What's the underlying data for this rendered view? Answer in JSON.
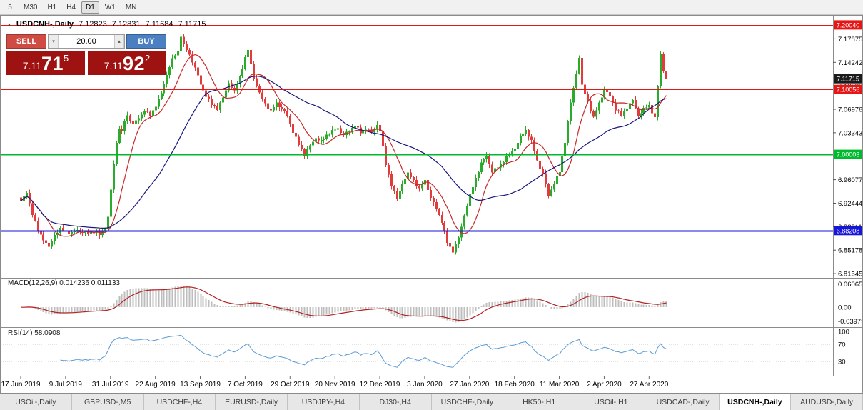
{
  "toolbar": {
    "timeframes": [
      {
        "label": "5",
        "active": false
      },
      {
        "label": "M30",
        "active": false
      },
      {
        "label": "H1",
        "active": false
      },
      {
        "label": "H4",
        "active": false
      },
      {
        "label": "D1",
        "active": true
      },
      {
        "label": "W1",
        "active": false
      },
      {
        "label": "MN",
        "active": false
      }
    ]
  },
  "chart": {
    "title_symbol": "USDCNH-,Daily",
    "ohlc": {
      "o": "7.12823",
      "h": "7.12831",
      "l": "7.11684",
      "c": "7.11715"
    },
    "one_click": {
      "sell_label": "SELL",
      "buy_label": "BUY",
      "volume": "20.00",
      "sell": {
        "big": "7.11",
        "pips": "71",
        "sup": "5"
      },
      "buy": {
        "big": "7.11",
        "pips": "92",
        "sup": "2"
      }
    },
    "macd_label": "MACD(12,26,9) 0.014236 0.011133",
    "rsi_label": "RSI(14) 58.0908"
  },
  "chart_data": {
    "type": "candlestick",
    "symbol": "USDCNH",
    "timeframe": "Daily",
    "ohlc_display": {
      "open": 7.12823,
      "high": 7.12831,
      "low": 7.11684,
      "close": 7.11715
    },
    "bars_total": 231,
    "price_at_top": 7.2102,
    "price_at_bottom": 6.81,
    "x_labels": [
      {
        "bar": 0,
        "label": "17 Jun 2019"
      },
      {
        "bar": 16,
        "label": "9 Jul 2019"
      },
      {
        "bar": 32,
        "label": "31 Jul 2019"
      },
      {
        "bar": 48,
        "label": "22 Aug 2019"
      },
      {
        "bar": 64,
        "label": "13 Sep 2019"
      },
      {
        "bar": 80,
        "label": "7 Oct 2019"
      },
      {
        "bar": 96,
        "label": "29 Oct 2019"
      },
      {
        "bar": 112,
        "label": "20 Nov 2019"
      },
      {
        "bar": 128,
        "label": "12 Dec 2019"
      },
      {
        "bar": 144,
        "label": "3 Jan 2020"
      },
      {
        "bar": 160,
        "label": "27 Jan 2020"
      },
      {
        "bar": 176,
        "label": "18 Feb 2020"
      },
      {
        "bar": 192,
        "label": "11 Mar 2020"
      },
      {
        "bar": 208,
        "label": "2 Apr 2020"
      },
      {
        "bar": 224,
        "label": "27 Apr 2020"
      }
    ],
    "y_ticks": [
      "7.17875",
      "7.14242",
      "7.10609",
      "7.06976",
      "7.03343",
      "6.99710",
      "6.96077",
      "6.92444",
      "6.88811",
      "6.85178",
      "6.81545"
    ],
    "close_waypoints": [
      [
        0,
        6.928
      ],
      [
        2,
        6.941
      ],
      [
        4,
        6.908
      ],
      [
        6,
        6.882
      ],
      [
        8,
        6.869
      ],
      [
        10,
        6.856
      ],
      [
        12,
        6.876
      ],
      [
        14,
        6.884
      ],
      [
        16,
        6.881
      ],
      [
        18,
        6.878
      ],
      [
        20,
        6.883
      ],
      [
        22,
        6.879
      ],
      [
        24,
        6.877
      ],
      [
        26,
        6.881
      ],
      [
        28,
        6.875
      ],
      [
        30,
        6.886
      ],
      [
        31,
        6.903
      ],
      [
        32,
        6.944
      ],
      [
        33,
        6.986
      ],
      [
        34,
        7.018
      ],
      [
        35,
        7.042
      ],
      [
        36,
        7.034
      ],
      [
        37,
        7.052
      ],
      [
        38,
        7.06
      ],
      [
        40,
        7.047
      ],
      [
        42,
        7.056
      ],
      [
        44,
        7.068
      ],
      [
        46,
        7.06
      ],
      [
        48,
        7.076
      ],
      [
        50,
        7.094
      ],
      [
        52,
        7.124
      ],
      [
        54,
        7.147
      ],
      [
        56,
        7.16
      ],
      [
        57,
        7.184
      ],
      [
        58,
        7.169
      ],
      [
        60,
        7.154
      ],
      [
        62,
        7.134
      ],
      [
        64,
        7.108
      ],
      [
        66,
        7.091
      ],
      [
        68,
        7.077
      ],
      [
        70,
        7.071
      ],
      [
        72,
        7.087
      ],
      [
        74,
        7.111
      ],
      [
        76,
        7.097
      ],
      [
        78,
        7.121
      ],
      [
        80,
        7.149
      ],
      [
        81,
        7.161
      ],
      [
        83,
        7.119
      ],
      [
        85,
        7.094
      ],
      [
        87,
        7.079
      ],
      [
        89,
        7.066
      ],
      [
        91,
        7.08
      ],
      [
        93,
        7.07
      ],
      [
        95,
        7.06
      ],
      [
        97,
        7.035
      ],
      [
        99,
        7.015
      ],
      [
        101,
        7.0
      ],
      [
        103,
        7.013
      ],
      [
        105,
        7.026
      ],
      [
        107,
        7.02
      ],
      [
        109,
        7.03
      ],
      [
        111,
        7.036
      ],
      [
        113,
        7.04
      ],
      [
        115,
        7.03
      ],
      [
        117,
        7.036
      ],
      [
        119,
        7.046
      ],
      [
        121,
        7.033
      ],
      [
        123,
        7.04
      ],
      [
        125,
        7.033
      ],
      [
        127,
        7.046
      ],
      [
        128,
        7.038
      ],
      [
        130,
        6.984
      ],
      [
        132,
        6.953
      ],
      [
        134,
        6.93
      ],
      [
        136,
        6.956
      ],
      [
        138,
        6.97
      ],
      [
        140,
        6.96
      ],
      [
        142,
        6.946
      ],
      [
        144,
        6.96
      ],
      [
        146,
        6.933
      ],
      [
        148,
        6.916
      ],
      [
        150,
        6.896
      ],
      [
        152,
        6.863
      ],
      [
        154,
        6.85
      ],
      [
        156,
        6.87
      ],
      [
        158,
        6.906
      ],
      [
        160,
        6.936
      ],
      [
        162,
        6.963
      ],
      [
        164,
        6.986
      ],
      [
        166,
        6.998
      ],
      [
        168,
        6.973
      ],
      [
        170,
        6.98
      ],
      [
        172,
        6.99
      ],
      [
        174,
        7.0
      ],
      [
        176,
        7.01
      ],
      [
        178,
        7.026
      ],
      [
        180,
        7.038
      ],
      [
        182,
        7.02
      ],
      [
        184,
        6.99
      ],
      [
        186,
        6.97
      ],
      [
        188,
        6.936
      ],
      [
        190,
        6.956
      ],
      [
        192,
        6.973
      ],
      [
        194,
        7.02
      ],
      [
        196,
        7.08
      ],
      [
        198,
        7.126
      ],
      [
        199,
        7.15
      ],
      [
        200,
        7.106
      ],
      [
        202,
        7.083
      ],
      [
        204,
        7.056
      ],
      [
        206,
        7.08
      ],
      [
        208,
        7.1
      ],
      [
        210,
        7.09
      ],
      [
        212,
        7.07
      ],
      [
        214,
        7.06
      ],
      [
        216,
        7.073
      ],
      [
        218,
        7.083
      ],
      [
        220,
        7.06
      ],
      [
        222,
        7.07
      ],
      [
        224,
        7.076
      ],
      [
        226,
        7.056
      ],
      [
        228,
        7.155
      ],
      [
        229,
        7.12823
      ],
      [
        230,
        7.11715
      ]
    ],
    "final_close": 7.11715,
    "hlines": [
      {
        "price": 7.2004,
        "label": "7.20040",
        "color": "#e41616",
        "width": 1
      },
      {
        "price": 7.10056,
        "label": "7.10056",
        "color": "#e41616",
        "width": 1
      },
      {
        "price": 7.00003,
        "label": "7.00003",
        "color": "#00ba2e",
        "width": 2
      },
      {
        "price": 6.88208,
        "label": "6.88208",
        "color": "#1616d8",
        "width": 2
      }
    ],
    "current_price": {
      "value": 7.11715,
      "label": "7.11715",
      "box_color": "#1b1b1b"
    },
    "moving_averages": [
      {
        "period": 10,
        "color": "#c62a2a"
      },
      {
        "period": 34,
        "color": "#17177f"
      }
    ],
    "macd": {
      "label": "MACD(12,26,9) 0.014236 0.011133",
      "fast": 12,
      "slow": 26,
      "signal": 9,
      "value": 0.014236,
      "signal_value": 0.011133,
      "scale_max": 0.060654,
      "scale_min": -0.039792,
      "scale_labels": [
        "0.060654",
        "0.00",
        "-0.039792"
      ],
      "histogram_color": "#bdbdbd",
      "signal_color": "#b22222"
    },
    "rsi": {
      "label": "RSI(14) 58.0908",
      "period": 14,
      "value": 58.0908,
      "levels": [
        100,
        70,
        30
      ],
      "line_color": "#5b9bd5",
      "level_color": "#c4c4c4"
    },
    "colors": {
      "up": "#2bab2b",
      "down": "#e23b3b",
      "background": "#ffffff"
    }
  },
  "tabs": [
    {
      "label": "USOil-,Daily",
      "active": false
    },
    {
      "label": "GBPUSD-,M5",
      "active": false
    },
    {
      "label": "USDCHF-,H4",
      "active": false
    },
    {
      "label": "EURUSD-,Daily",
      "active": false
    },
    {
      "label": "USDJPY-,H4",
      "active": false
    },
    {
      "label": "DJ30-,H4",
      "active": false
    },
    {
      "label": "USDCHF-,Daily",
      "active": false
    },
    {
      "label": "HK50-,H1",
      "active": false
    },
    {
      "label": "USOil-,H1",
      "active": false
    },
    {
      "label": "USDCAD-,Daily",
      "active": false
    },
    {
      "label": "USDCNH-,Daily",
      "active": true
    },
    {
      "label": "AUDUSD-,Daily",
      "active": false
    }
  ]
}
